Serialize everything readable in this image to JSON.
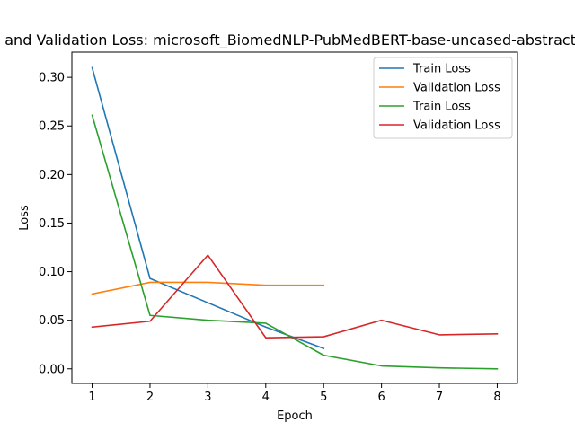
{
  "chart_data": {
    "type": "line",
    "title": "Training and Validation Loss: microsoft_BiomedNLP-PubMedBERT-base-uncased-abstract-fulltext",
    "xlabel": "Epoch",
    "ylabel": "Loss",
    "xlim": [
      0.65,
      8.35
    ],
    "ylim": [
      -0.015,
      0.326
    ],
    "xticks": [
      1,
      2,
      3,
      4,
      5,
      6,
      7,
      8
    ],
    "yticks": [
      0.0,
      0.05,
      0.1,
      0.15,
      0.2,
      0.25,
      0.3
    ],
    "ytick_labels": [
      "0.00",
      "0.05",
      "0.10",
      "0.15",
      "0.20",
      "0.25",
      "0.30"
    ],
    "grid": false,
    "legend_position": "top-right",
    "series": [
      {
        "name": "Train Loss",
        "color": "#1f77b4",
        "x": [
          1,
          2,
          3,
          4,
          5
        ],
        "y": [
          0.31,
          0.093,
          0.068,
          0.043,
          0.021
        ]
      },
      {
        "name": "Validation Loss",
        "color": "#ff7f0e",
        "x": [
          1,
          2,
          3,
          4,
          5
        ],
        "y": [
          0.077,
          0.089,
          0.089,
          0.086,
          0.086
        ]
      },
      {
        "name": "Train Loss",
        "color": "#2ca02c",
        "x": [
          1,
          2,
          3,
          4,
          5,
          6,
          7,
          8
        ],
        "y": [
          0.261,
          0.055,
          0.05,
          0.047,
          0.014,
          0.003,
          0.001,
          0.0
        ]
      },
      {
        "name": "Validation Loss",
        "color": "#d62728",
        "x": [
          1,
          2,
          3,
          4,
          5,
          6,
          7,
          8
        ],
        "y": [
          0.043,
          0.049,
          0.117,
          0.032,
          0.033,
          0.05,
          0.035,
          0.036
        ]
      }
    ]
  }
}
